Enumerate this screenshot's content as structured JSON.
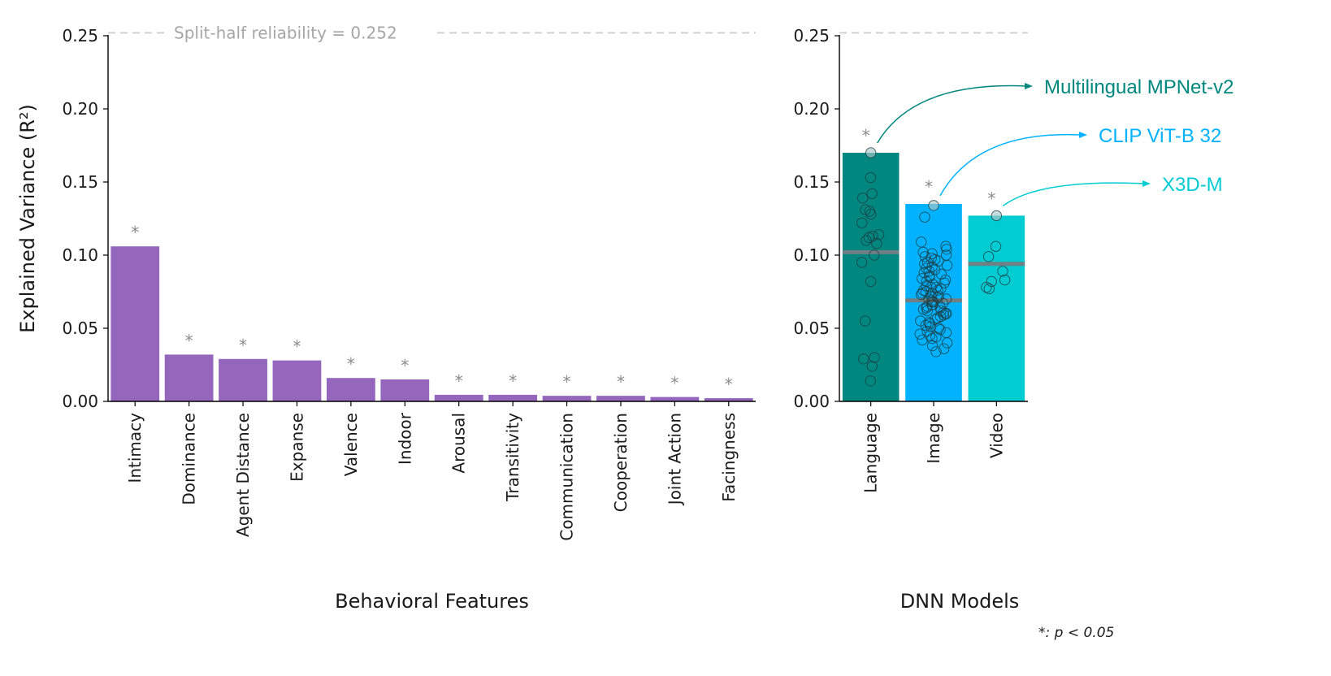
{
  "chart_data": [
    {
      "type": "bar",
      "xlabel": "Behavioral Features",
      "ylabel": "Explained Variance (R²)",
      "ylim": [
        0,
        0.25
      ],
      "yticks": [
        "0.00",
        "0.05",
        "0.10",
        "0.15",
        "0.20",
        "0.25"
      ],
      "reference_line": {
        "value": 0.252,
        "label": "Split-half reliability = 0.252"
      },
      "significance_marker": "*",
      "color": "#9467bd",
      "categories": [
        "Intimacy",
        "Dominance",
        "Agent Distance",
        "Expanse",
        "Valence",
        "Indoor",
        "Arousal",
        "Transitivity",
        "Communication",
        "Cooperation",
        "Joint Action",
        "Facingness"
      ],
      "values": [
        0.106,
        0.032,
        0.029,
        0.028,
        0.016,
        0.015,
        0.0045,
        0.0045,
        0.0038,
        0.0038,
        0.003,
        0.0022
      ],
      "significant": [
        true,
        true,
        true,
        true,
        true,
        true,
        true,
        true,
        true,
        true,
        true,
        true
      ]
    },
    {
      "type": "bar",
      "xlabel": "DNN Models",
      "ylim": [
        0,
        0.25
      ],
      "yticks": [
        "0.00",
        "0.05",
        "0.10",
        "0.15",
        "0.20",
        "0.25"
      ],
      "significance_marker": "*",
      "categories": [
        "Language",
        "Image",
        "Video"
      ],
      "values": [
        0.17,
        0.135,
        0.127
      ],
      "means": [
        0.102,
        0.069,
        0.094
      ],
      "colors": [
        "#00877f",
        "#00b2ff",
        "#00ccd2"
      ],
      "best_model_labels": [
        "Multilingual MPNet-v2",
        "CLIP ViT-B 32",
        "X3D-M"
      ],
      "points": [
        [
          0.17,
          0.153,
          0.142,
          0.139,
          0.131,
          0.13,
          0.128,
          0.122,
          0.114,
          0.113,
          0.112,
          0.11,
          0.108,
          0.1,
          0.095,
          0.082,
          0.055,
          0.03,
          0.029,
          0.024,
          0.014
        ],
        [
          0.134,
          0.126,
          0.109,
          0.106,
          0.104,
          0.102,
          0.101,
          0.1,
          0.099,
          0.098,
          0.097,
          0.096,
          0.095,
          0.094,
          0.093,
          0.092,
          0.091,
          0.09,
          0.089,
          0.088,
          0.087,
          0.086,
          0.085,
          0.084,
          0.083,
          0.082,
          0.081,
          0.08,
          0.079,
          0.078,
          0.078,
          0.077,
          0.076,
          0.076,
          0.075,
          0.074,
          0.074,
          0.073,
          0.072,
          0.072,
          0.071,
          0.07,
          0.07,
          0.069,
          0.068,
          0.068,
          0.067,
          0.066,
          0.066,
          0.065,
          0.064,
          0.064,
          0.063,
          0.062,
          0.062,
          0.061,
          0.06,
          0.06,
          0.059,
          0.058,
          0.057,
          0.056,
          0.055,
          0.054,
          0.053,
          0.052,
          0.051,
          0.05,
          0.049,
          0.048,
          0.047,
          0.046,
          0.045,
          0.044,
          0.043,
          0.042,
          0.04,
          0.038,
          0.036,
          0.034
        ],
        [
          0.127,
          0.106,
          0.099,
          0.089,
          0.083,
          0.082,
          0.078,
          0.077
        ]
      ]
    }
  ],
  "footnote": "*: p < 0.05"
}
